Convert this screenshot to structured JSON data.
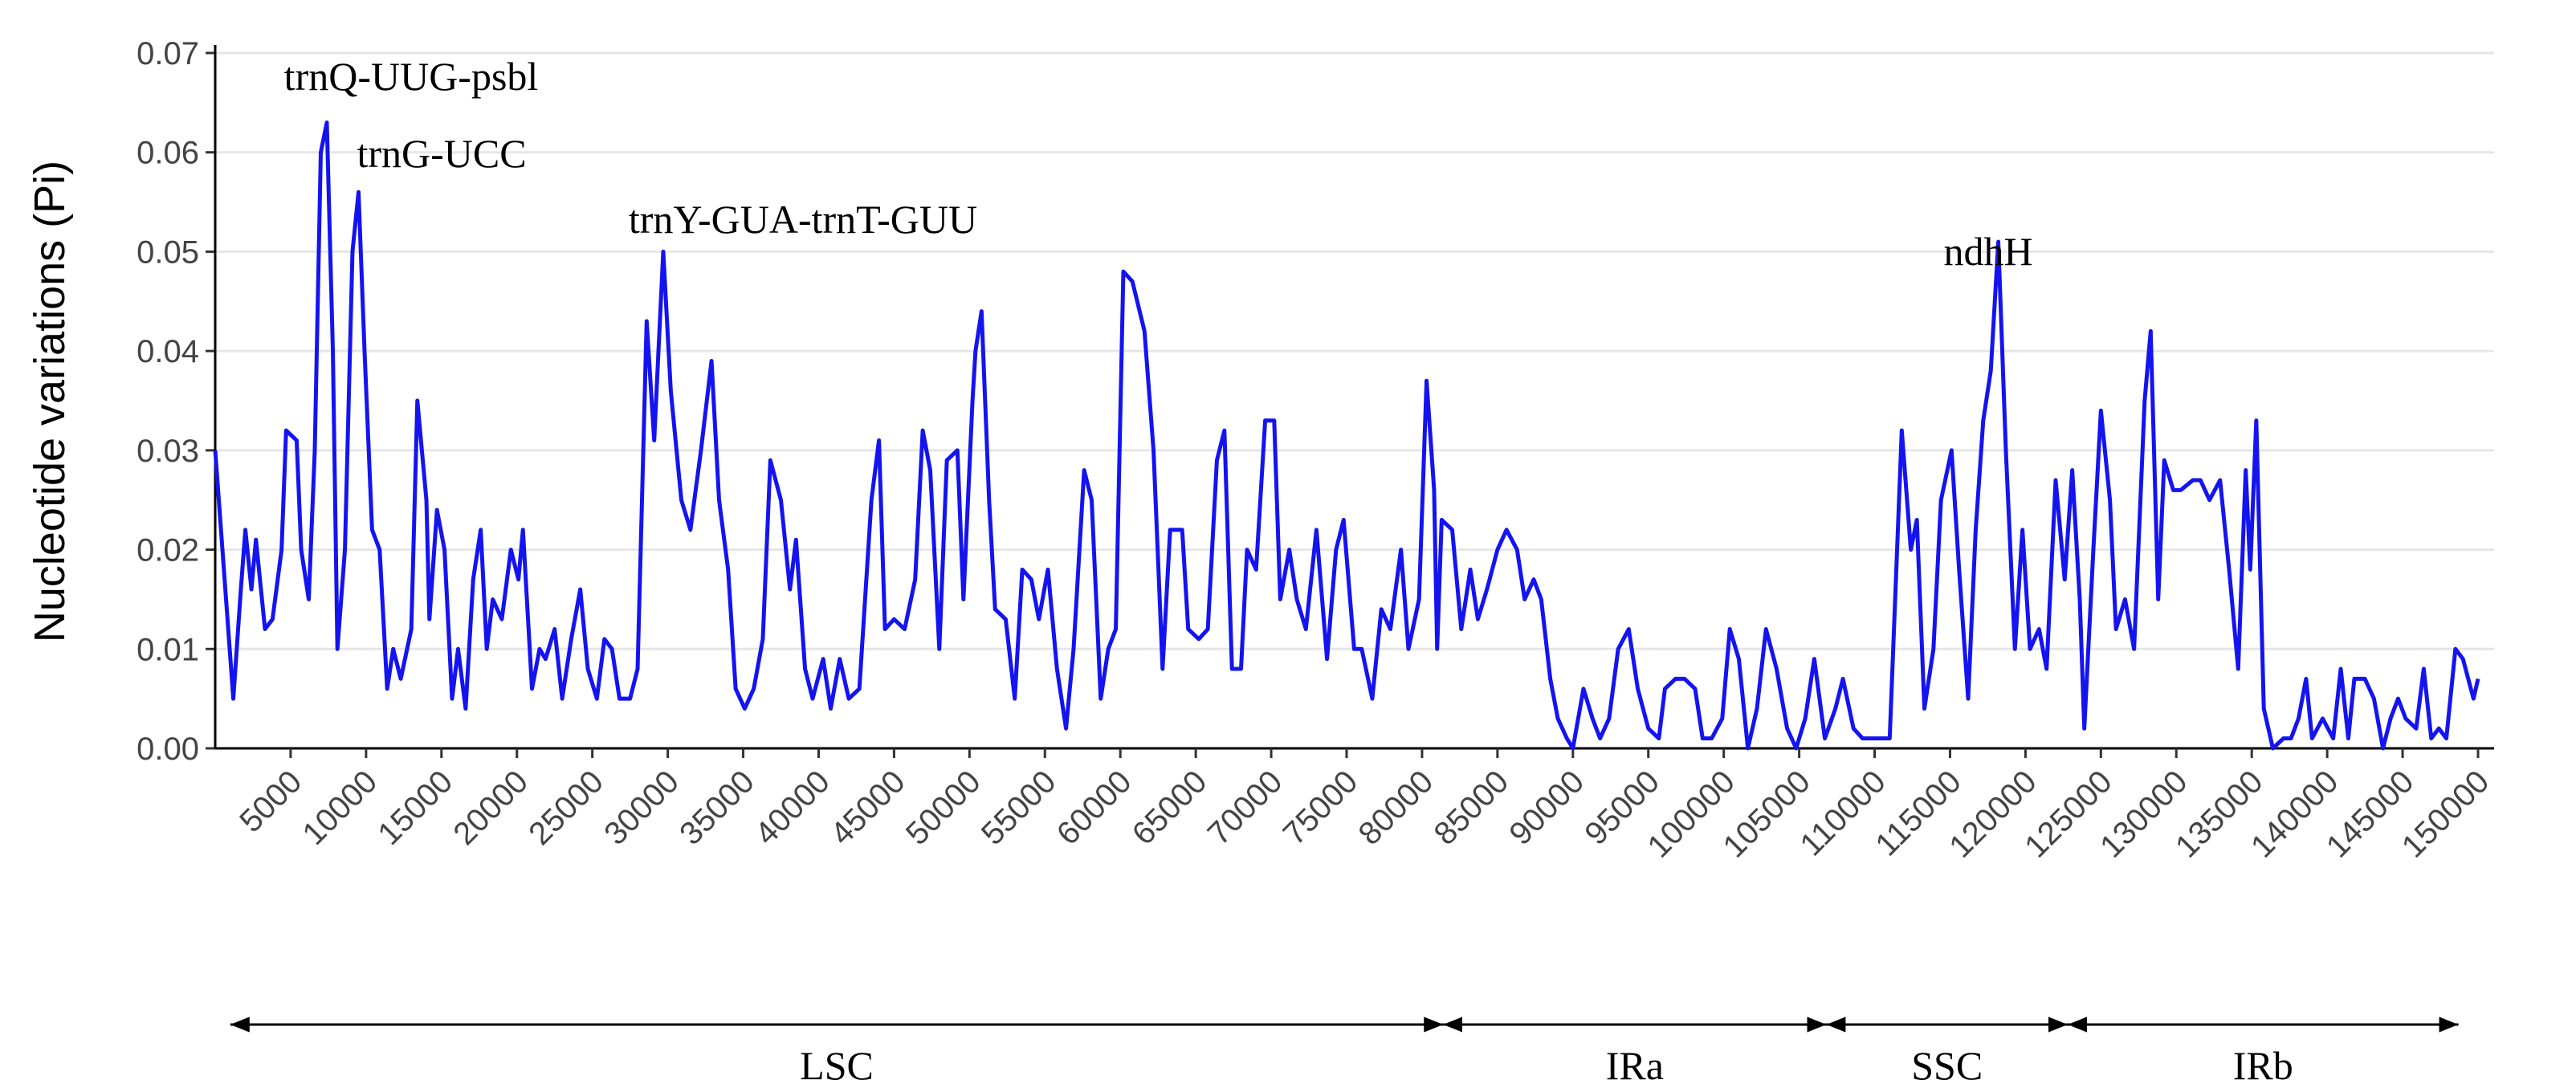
{
  "chart_data": {
    "type": "line",
    "y_label": "Nucleotide variations (Pi)",
    "x": [
      0,
      1200,
      1700,
      2000,
      2400,
      2700,
      3300,
      3800,
      4400,
      4700,
      5400,
      5700,
      6200,
      6600,
      7000,
      7400,
      7800,
      8100,
      8600,
      9100,
      9500,
      9900,
      10400,
      10900,
      11400,
      11800,
      12300,
      13000,
      13400,
      14000,
      14200,
      14700,
      15200,
      15700,
      16100,
      16600,
      17100,
      17600,
      18000,
      18400,
      19000,
      19600,
      20100,
      20400,
      21000,
      21500,
      21900,
      22500,
      23000,
      23600,
      24200,
      24700,
      25300,
      25800,
      26300,
      26800,
      27500,
      28000,
      28600,
      29100,
      29700,
      30200,
      30900,
      31500,
      32200,
      32900,
      33400,
      34000,
      34500,
      35100,
      35700,
      36300,
      36800,
      37500,
      38100,
      38500,
      39100,
      39600,
      40300,
      40800,
      41400,
      42000,
      42700,
      43500,
      44000,
      44400,
      45000,
      45700,
      46400,
      46900,
      47400,
      48000,
      48500,
      49200,
      49600,
      50200,
      50400,
      50800,
      51300,
      51700,
      52400,
      53000,
      53500,
      54100,
      54600,
      55200,
      55800,
      56400,
      56900,
      57600,
      58100,
      58700,
      59200,
      59700,
      60200,
      60800,
      61600,
      62200,
      62800,
      63300,
      64100,
      64500,
      65200,
      65800,
      66400,
      66900,
      67400,
      68000,
      68400,
      69000,
      69600,
      70200,
      70600,
      71200,
      71700,
      72300,
      73000,
      73700,
      74300,
      74800,
      75500,
      76000,
      76700,
      77300,
      77900,
      78600,
      79100,
      79800,
      80300,
      80800,
      81000,
      81300,
      82000,
      82600,
      83200,
      83700,
      84300,
      85000,
      85600,
      86300,
      86800,
      87400,
      87900,
      88500,
      89000,
      89600,
      90000,
      90700,
      91300,
      91800,
      92400,
      93000,
      93700,
      94300,
      95000,
      95700,
      96100,
      96800,
      97400,
      98100,
      98600,
      99200,
      99900,
      100400,
      101000,
      101600,
      102200,
      102800,
      103500,
      104200,
      104800,
      105400,
      106000,
      106700,
      107400,
      107900,
      108600,
      109200,
      109900,
      110600,
      111000,
      111800,
      112400,
      112800,
      113300,
      113900,
      114400,
      115100,
      115600,
      116200,
      116700,
      117200,
      117700,
      118200,
      118700,
      119300,
      119800,
      120300,
      120900,
      121400,
      122000,
      122600,
      123100,
      123600,
      123900,
      124500,
      125000,
      125600,
      126000,
      126600,
      127200,
      127900,
      128300,
      128800,
      129200,
      129800,
      130300,
      131100,
      131600,
      132200,
      132900,
      133500,
      134100,
      134600,
      134900,
      135300,
      135800,
      136400,
      137100,
      137600,
      138100,
      138600,
      139000,
      139700,
      140400,
      140900,
      141400,
      141800,
      142500,
      143100,
      143700,
      144200,
      144700,
      145200,
      145900,
      146400,
      146900,
      147400,
      147900,
      148500,
      149000,
      149700,
      150000
    ],
    "series": [
      {
        "color": "#1414f0",
        "values": [
          0.03,
          0.005,
          0.016,
          0.022,
          0.016,
          0.021,
          0.012,
          0.013,
          0.02,
          0.032,
          0.031,
          0.02,
          0.015,
          0.03,
          0.06,
          0.063,
          0.04,
          0.01,
          0.02,
          0.05,
          0.056,
          0.04,
          0.022,
          0.02,
          0.006,
          0.01,
          0.007,
          0.012,
          0.035,
          0.025,
          0.013,
          0.024,
          0.02,
          0.005,
          0.01,
          0.004,
          0.017,
          0.022,
          0.01,
          0.015,
          0.013,
          0.02,
          0.017,
          0.022,
          0.006,
          0.01,
          0.009,
          0.012,
          0.005,
          0.011,
          0.016,
          0.008,
          0.005,
          0.011,
          0.01,
          0.005,
          0.005,
          0.008,
          0.043,
          0.031,
          0.05,
          0.036,
          0.025,
          0.022,
          0.03,
          0.039,
          0.025,
          0.018,
          0.006,
          0.004,
          0.006,
          0.011,
          0.029,
          0.025,
          0.016,
          0.021,
          0.008,
          0.005,
          0.009,
          0.004,
          0.009,
          0.005,
          0.006,
          0.025,
          0.031,
          0.012,
          0.013,
          0.012,
          0.017,
          0.032,
          0.028,
          0.01,
          0.029,
          0.03,
          0.015,
          0.035,
          0.04,
          0.044,
          0.025,
          0.014,
          0.013,
          0.005,
          0.018,
          0.017,
          0.013,
          0.018,
          0.008,
          0.002,
          0.01,
          0.028,
          0.025,
          0.005,
          0.01,
          0.012,
          0.048,
          0.047,
          0.042,
          0.03,
          0.008,
          0.022,
          0.022,
          0.012,
          0.011,
          0.012,
          0.029,
          0.032,
          0.008,
          0.008,
          0.02,
          0.018,
          0.033,
          0.033,
          0.015,
          0.02,
          0.015,
          0.012,
          0.022,
          0.009,
          0.02,
          0.023,
          0.01,
          0.01,
          0.005,
          0.014,
          0.012,
          0.02,
          0.01,
          0.015,
          0.037,
          0.026,
          0.01,
          0.023,
          0.022,
          0.012,
          0.018,
          0.013,
          0.016,
          0.02,
          0.022,
          0.02,
          0.015,
          0.017,
          0.015,
          0.007,
          0.003,
          0.001,
          0,
          0.006,
          0.003,
          0.001,
          0.003,
          0.01,
          0.012,
          0.006,
          0.002,
          0.001,
          0.006,
          0.007,
          0.007,
          0.006,
          0.001,
          0.001,
          0.003,
          0.012,
          0.009,
          0,
          0.004,
          0.012,
          0.008,
          0.002,
          0,
          0.003,
          0.009,
          0.001,
          0.004,
          0.007,
          0.002,
          0.001,
          0.001,
          0.001,
          0.001,
          0.032,
          0.02,
          0.023,
          0.004,
          0.01,
          0.025,
          0.03,
          0.018,
          0.005,
          0.022,
          0.033,
          0.038,
          0.051,
          0.03,
          0.01,
          0.022,
          0.01,
          0.012,
          0.008,
          0.027,
          0.017,
          0.028,
          0.015,
          0.002,
          0.02,
          0.034,
          0.025,
          0.012,
          0.015,
          0.01,
          0.035,
          0.042,
          0.015,
          0.029,
          0.026,
          0.026,
          0.027,
          0.027,
          0.025,
          0.027,
          0.018,
          0.008,
          0.028,
          0.018,
          0.033,
          0.004,
          0,
          0.001,
          0.001,
          0.003,
          0.007,
          0.001,
          0.003,
          0.001,
          0.008,
          0.001,
          0.007,
          0.007,
          0.005,
          0,
          0.003,
          0.005,
          0.003,
          0.002,
          0.008,
          0.001,
          0.002,
          0.001,
          0.01,
          0.009,
          0.005,
          0.007
        ]
      }
    ],
    "xlim": [
      0,
      150000
    ],
    "xticks": [
      5000,
      10000,
      15000,
      20000,
      25000,
      30000,
      35000,
      40000,
      45000,
      50000,
      55000,
      60000,
      65000,
      70000,
      75000,
      80000,
      85000,
      90000,
      95000,
      100000,
      105000,
      110000,
      115000,
      120000,
      125000,
      130000,
      135000,
      140000,
      145000,
      150000
    ],
    "ylim": [
      0,
      0.07
    ],
    "yticks": [
      {
        "value": 0,
        "label": "0.00"
      },
      0.01,
      0.02,
      0.03,
      0.04,
      0.05,
      0.06,
      0.07
    ],
    "grid": true,
    "annotations": [
      "trnQ-UUG-psbl",
      "trnG-UCC",
      "trnY-GUA-trnT-GUU",
      "ndhH"
    ],
    "regions": [
      {
        "name": "LSC",
        "start": 1000,
        "end": 81400
      },
      {
        "name": "IRa",
        "start": 81400,
        "end": 106800
      },
      {
        "name": "SSC",
        "start": 106800,
        "end": 122800
      },
      {
        "name": "IRb",
        "start": 122800,
        "end": 148700
      }
    ]
  }
}
